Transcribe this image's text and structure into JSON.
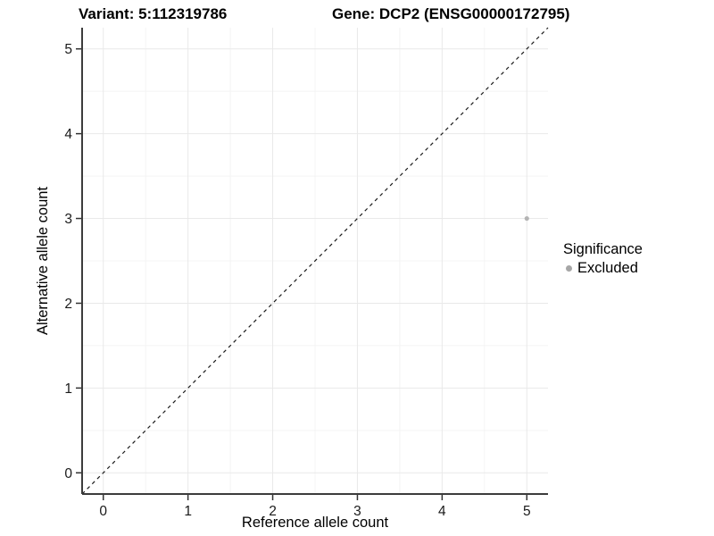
{
  "chart_data": {
    "type": "scatter",
    "title_left": "Variant: 5:112319786",
    "title_right": "Gene: DCP2 (ENSG00000172795)",
    "xlabel": "Reference allele count",
    "ylabel": "Alternative allele count",
    "xlim": [
      -0.25,
      5.25
    ],
    "ylim": [
      -0.25,
      5.25
    ],
    "xticks": [
      "0",
      "1",
      "2",
      "3",
      "4",
      "5"
    ],
    "yticks": [
      "0",
      "1",
      "2",
      "3",
      "4",
      "5"
    ],
    "xticks_minor": [
      0.5,
      1.5,
      2.5,
      3.5,
      4.5
    ],
    "yticks_minor": [
      0.5,
      1.5,
      2.5,
      3.5,
      4.5
    ],
    "grid": "major+minor",
    "series": [
      {
        "name": "Excluded",
        "color": "#b4b4b4",
        "points": [
          {
            "x": 5,
            "y": 3
          }
        ]
      }
    ],
    "diagonal_line": {
      "style": "dashed",
      "color": "#1a1a1a",
      "x1": -0.25,
      "y1": -0.25,
      "x2": 5.25,
      "y2": 5.25
    },
    "legend": {
      "title": "Significance",
      "position": "right",
      "items": [
        {
          "label": "Excluded",
          "color": "#a6a6a6"
        }
      ]
    },
    "colors": {
      "background": "#ffffff",
      "grid_major": "#e9e9e9",
      "grid_minor": "#f4f4f4",
      "axis_line": "#3c3c3c",
      "tick_mark": "#333333",
      "text": "#1a1a1a"
    }
  }
}
